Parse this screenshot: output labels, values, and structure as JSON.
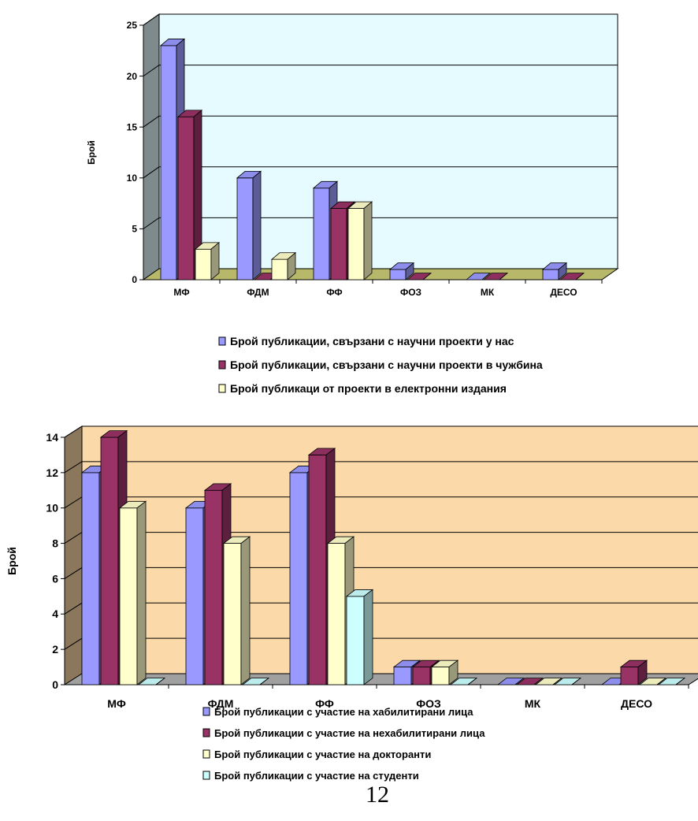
{
  "page_number": "12",
  "chart_data": [
    {
      "type": "bar",
      "variant": "3d-clustered",
      "title": "",
      "xlabel": "",
      "ylabel": "Брой",
      "ylim": [
        0,
        25
      ],
      "yticks": [
        0,
        5,
        10,
        15,
        20,
        25
      ],
      "grid": true,
      "legend_position": "bottom",
      "wall_color": "#e6fbff",
      "floor_color": "#b8b86a",
      "categories": [
        "МФ",
        "ФДМ",
        "ФФ",
        "ФОЗ",
        "МК",
        "ДЕСО"
      ],
      "series": [
        {
          "name": "Брой публикации, свързани с научни проекти у нас",
          "color": "#9999ff",
          "values": [
            23,
            10,
            9,
            1,
            0,
            1
          ]
        },
        {
          "name": "Брой публикации, свързани с научни проекти в чужбина",
          "color": "#993366",
          "values": [
            16,
            0,
            7,
            0,
            0,
            0
          ]
        },
        {
          "name": "Брой публикаци от проекти в електронни издания",
          "color": "#ffffcc",
          "values": [
            3,
            2,
            7,
            null,
            null,
            null
          ]
        }
      ]
    },
    {
      "type": "bar",
      "variant": "3d-clustered",
      "title": "",
      "xlabel": "",
      "ylabel": "Брой",
      "ylim": [
        0,
        14
      ],
      "yticks": [
        0,
        2,
        4,
        6,
        8,
        10,
        12,
        14
      ],
      "grid": true,
      "legend_position": "bottom",
      "wall_color": "#fbd9a8",
      "floor_color": "#a0a0a0",
      "categories": [
        "МФ",
        "ФДМ",
        "ФФ",
        "ФОЗ",
        "МК",
        "ДЕСО"
      ],
      "series": [
        {
          "name": "Брой публикации с участие на хабилитирани лица",
          "color": "#9999ff",
          "values": [
            12,
            10,
            12,
            1,
            0,
            0
          ]
        },
        {
          "name": "Брой публикации с участие на нехабилитирани лица",
          "color": "#993366",
          "values": [
            14,
            11,
            13,
            1,
            0,
            1
          ]
        },
        {
          "name": "Брой публикации с участие на докторанти",
          "color": "#ffffcc",
          "values": [
            10,
            8,
            8,
            1,
            0,
            0
          ]
        },
        {
          "name": "Брой публикации с участие на студенти",
          "color": "#ccffff",
          "values": [
            0,
            0,
            5,
            0,
            0,
            0
          ]
        }
      ]
    }
  ]
}
